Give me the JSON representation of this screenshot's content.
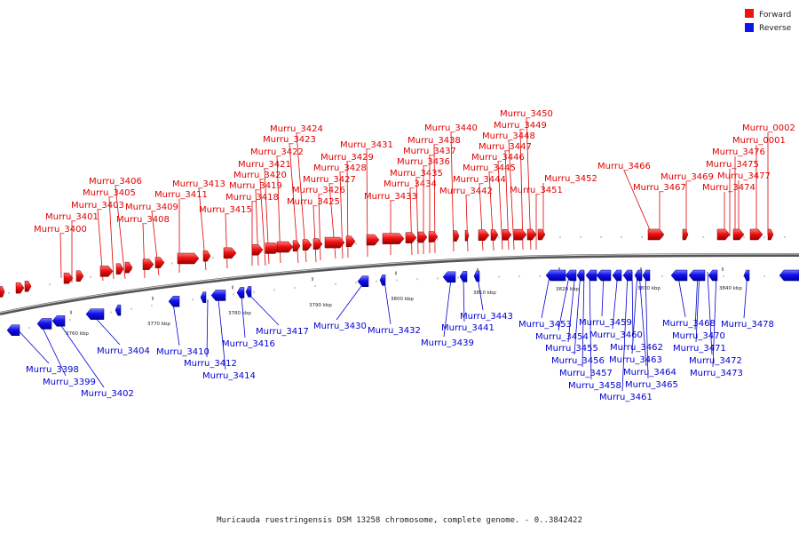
{
  "caption": "Muricauda ruestringensis DSM 13258 chromosome, complete genome. - 0..3842422",
  "legend": {
    "forward": {
      "label": "Forward",
      "color": "#ee1111"
    },
    "reverse": {
      "label": "Reverse",
      "color": "#1111ee"
    }
  },
  "colors": {
    "forward": "#ee1111",
    "reverse": "#1111ee",
    "backbone": "#777777"
  },
  "scale_ticks": [
    "3760 kbp",
    "3770 kbp",
    "3780 kbp",
    "3790 kbp",
    "3800 kbp",
    "3810 kbp",
    "3820 kbp",
    "3830 kbp",
    "3840 kbp"
  ],
  "forward_labels": [
    "Murru_3400",
    "Murru_3401",
    "Murru_3403",
    "Murru_3405",
    "Murru_3406",
    "Murru_3408",
    "Murru_3409",
    "Murru_3411",
    "Murru_3413",
    "Murru_3415",
    "Murru_3418",
    "Murru_3419",
    "Murru_3420",
    "Murru_3421",
    "Murru_3422",
    "Murru_3423",
    "Murru_3424",
    "Murru_3425",
    "Murru_3426",
    "Murru_3427",
    "Murru_3428",
    "Murru_3429",
    "Murru_3431",
    "Murru_3433",
    "Murru_3434",
    "Murru_3435",
    "Murru_3436",
    "Murru_3437",
    "Murru_3438",
    "Murru_3440",
    "Murru_3442",
    "Murru_3444",
    "Murru_3445",
    "Murru_3446",
    "Murru_3447",
    "Murru_3448",
    "Murru_3449",
    "Murru_3450",
    "Murru_3451",
    "Murru_3452",
    "Murru_3466",
    "Murru_3467",
    "Murru_3469",
    "Murru_3474",
    "Murru_3475",
    "Murru_3476",
    "Murru_3477",
    "Murru_0001",
    "Murru_0002"
  ],
  "reverse_labels": [
    "Murru_3398",
    "Murru_3399",
    "Murru_3402",
    "Murru_3404",
    "Murru_3410",
    "Murru_3412",
    "Murru_3414",
    "Murru_3416",
    "Murru_3417",
    "Murru_3430",
    "Murru_3432",
    "Murru_3439",
    "Murru_3441",
    "Murru_3443",
    "Murru_3453",
    "Murru_3454",
    "Murru_3455",
    "Murru_3456",
    "Murru_3457",
    "Murru_3458",
    "Murru_3459",
    "Murru_3460",
    "Murru_3461",
    "Murru_3462",
    "Murru_3463",
    "Murru_3464",
    "Murru_3465",
    "Murru_3468",
    "Murru_3470",
    "Murru_3471",
    "Murru_3472",
    "Murru_3473",
    "Murru_3478"
  ]
}
